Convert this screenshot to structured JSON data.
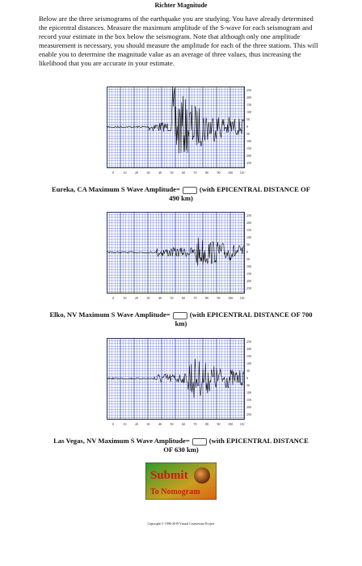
{
  "header": {
    "title": "Richter Magnitude"
  },
  "intro": "Below are the three seismograms of the earthquake you are studying. You have already determined the epicentral distances. Measure the maximum amplitude of the S-wave for each seismogram and record your estimate in the box below the seismogram. Note that although only one amplitude measurement is necessary, you should measure the amplitude for each of the three stations. This will enable you to determine the magnitude value as an average of three values, thus increasing the likelihood that you are accurate in your estimate.",
  "seismogram_axis": {
    "x_labels": [
      "0",
      "10",
      "20",
      "30",
      "40",
      "50",
      "60",
      "70",
      "80",
      "90",
      "100",
      "110"
    ],
    "y_labels": [
      "250",
      "200",
      "150",
      "100",
      "50",
      "0",
      "50",
      "100",
      "150",
      "200",
      "250"
    ]
  },
  "stations": [
    {
      "label": "Eureka, CA Maximum S Wave Amplitude=",
      "distance": "(with EPICENTRAL DISTANCE OF 490 km)"
    },
    {
      "label": "Elko, NV Maximum S Wave Amplitude=",
      "distance": "(with EPICENTRAL DISTANCE OF 700 km)"
    },
    {
      "label": "Las Vegas, NV Maximum S Wave Amplitude=",
      "distance": "(with EPICENTRAL DISTANCE OF 630 km)"
    }
  ],
  "submit": {
    "line1": "Submit",
    "line2": "To Nomogram"
  },
  "footer": "Copyright © 1996-2019 Virtual Courseware Project"
}
